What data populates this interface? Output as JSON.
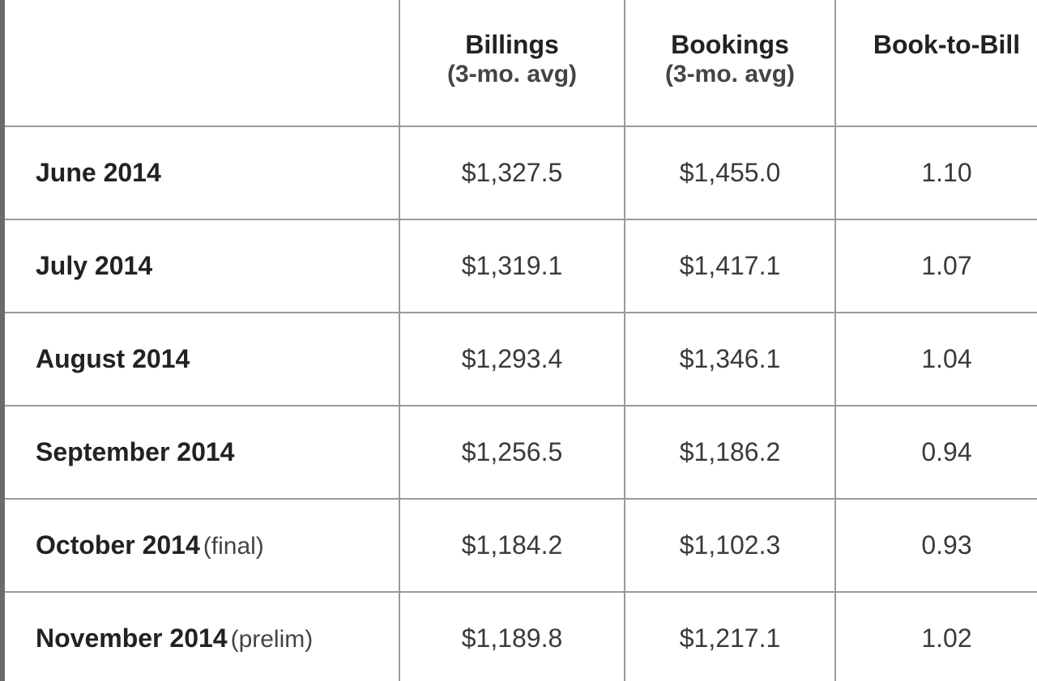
{
  "table": {
    "headers": [
      {
        "label": "",
        "sub": ""
      },
      {
        "label": "Billings",
        "sub": "(3-mo. avg)"
      },
      {
        "label": "Bookings",
        "sub": "(3-mo. avg)"
      },
      {
        "label": "Book-to-Bill",
        "sub": ""
      }
    ],
    "rows": [
      {
        "month": "June 2014",
        "note": "",
        "billings": "$1,327.5",
        "bookings": "$1,455.0",
        "ratio": "1.10"
      },
      {
        "month": "July 2014",
        "note": "",
        "billings": "$1,319.1",
        "bookings": "$1,417.1",
        "ratio": "1.07"
      },
      {
        "month": "August 2014",
        "note": "",
        "billings": "$1,293.4",
        "bookings": "$1,346.1",
        "ratio": "1.04"
      },
      {
        "month": "September 2014",
        "note": "",
        "billings": "$1,256.5",
        "bookings": "$1,186.2",
        "ratio": "0.94"
      },
      {
        "month": "October 2014",
        "note": "(final)",
        "billings": "$1,184.2",
        "bookings": "$1,102.3",
        "ratio": "0.93"
      },
      {
        "month": "November 2014",
        "note": "(prelim)",
        "billings": "$1,189.8",
        "bookings": "$1,217.1",
        "ratio": "1.02"
      }
    ]
  }
}
